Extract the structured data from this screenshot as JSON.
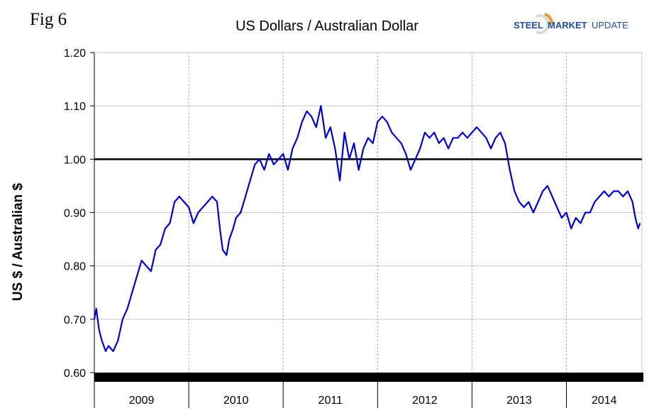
{
  "fig_label": "Fig 6",
  "logo": {
    "word1": "STEEL",
    "word2": "MARKET",
    "word3": "UPDATE",
    "brand_color": "#1f4e9a",
    "accent_color": "#e8962a"
  },
  "chart_data": {
    "type": "line",
    "title": "US Dollars  / Australian Dollar",
    "ylabel": "US $ / Australian $",
    "xlabel": "",
    "ylim": [
      0.6,
      1.2
    ],
    "yticks": [
      "0.60",
      "0.70",
      "0.80",
      "0.90",
      "1.00",
      "1.10",
      "1.20"
    ],
    "ytick_values": [
      0.6,
      0.7,
      0.8,
      0.9,
      1.0,
      1.1,
      1.2
    ],
    "xlim": [
      2009.0,
      2014.8
    ],
    "years": [
      "2009",
      "2010",
      "2011",
      "2012",
      "2013",
      "2014"
    ],
    "reference_line": 1.0,
    "line_color": "#0000dd",
    "grid": true,
    "series": [
      {
        "x": [
          2009.0,
          2009.02,
          2009.05,
          2009.08,
          2009.12,
          2009.15,
          2009.2,
          2009.25,
          2009.3,
          2009.35,
          2009.4,
          2009.45,
          2009.5,
          2009.55,
          2009.6,
          2009.65,
          2009.7,
          2009.75,
          2009.8,
          2009.85,
          2009.9,
          2009.95,
          2010.0,
          2010.05,
          2010.1,
          2010.15,
          2010.2,
          2010.25,
          2010.3,
          2010.33,
          2010.36,
          2010.4,
          2010.43,
          2010.47,
          2010.5,
          2010.55,
          2010.6,
          2010.65,
          2010.7,
          2010.75,
          2010.8,
          2010.85,
          2010.9,
          2010.95,
          2011.0,
          2011.05,
          2011.1,
          2011.15,
          2011.2,
          2011.25,
          2011.3,
          2011.35,
          2011.4,
          2011.45,
          2011.5,
          2011.55,
          2011.6,
          2011.65,
          2011.7,
          2011.75,
          2011.8,
          2011.85,
          2011.9,
          2011.95,
          2012.0,
          2012.05,
          2012.1,
          2012.15,
          2012.2,
          2012.25,
          2012.3,
          2012.35,
          2012.4,
          2012.45,
          2012.5,
          2012.55,
          2012.6,
          2012.65,
          2012.7,
          2012.75,
          2012.8,
          2012.85,
          2012.9,
          2012.95,
          2013.0,
          2013.05,
          2013.1,
          2013.15,
          2013.2,
          2013.25,
          2013.3,
          2013.35,
          2013.4,
          2013.45,
          2013.5,
          2013.55,
          2013.6,
          2013.65,
          2013.7,
          2013.75,
          2013.8,
          2013.85,
          2013.9,
          2013.95,
          2014.0,
          2014.05,
          2014.1,
          2014.15,
          2014.2,
          2014.25,
          2014.3,
          2014.35,
          2014.4,
          2014.45,
          2014.5,
          2014.55,
          2014.6,
          2014.65,
          2014.7,
          2014.73,
          2014.76,
          2014.78
        ],
        "values": [
          0.7,
          0.72,
          0.68,
          0.66,
          0.64,
          0.65,
          0.64,
          0.66,
          0.7,
          0.72,
          0.75,
          0.78,
          0.81,
          0.8,
          0.79,
          0.83,
          0.84,
          0.87,
          0.88,
          0.92,
          0.93,
          0.92,
          0.91,
          0.88,
          0.9,
          0.91,
          0.92,
          0.93,
          0.92,
          0.87,
          0.83,
          0.82,
          0.85,
          0.87,
          0.89,
          0.9,
          0.93,
          0.96,
          0.99,
          1.0,
          0.98,
          1.01,
          0.99,
          1.0,
          1.01,
          0.98,
          1.02,
          1.04,
          1.07,
          1.09,
          1.08,
          1.06,
          1.1,
          1.04,
          1.06,
          1.02,
          0.96,
          1.05,
          1.0,
          1.03,
          0.98,
          1.02,
          1.04,
          1.03,
          1.07,
          1.08,
          1.07,
          1.05,
          1.04,
          1.03,
          1.01,
          0.98,
          1.0,
          1.02,
          1.05,
          1.04,
          1.05,
          1.03,
          1.04,
          1.02,
          1.04,
          1.04,
          1.05,
          1.04,
          1.05,
          1.06,
          1.05,
          1.04,
          1.02,
          1.04,
          1.05,
          1.03,
          0.98,
          0.94,
          0.92,
          0.91,
          0.92,
          0.9,
          0.92,
          0.94,
          0.95,
          0.93,
          0.91,
          0.89,
          0.9,
          0.87,
          0.89,
          0.88,
          0.9,
          0.9,
          0.92,
          0.93,
          0.94,
          0.93,
          0.94,
          0.94,
          0.93,
          0.94,
          0.92,
          0.89,
          0.87,
          0.88
        ]
      }
    ]
  }
}
